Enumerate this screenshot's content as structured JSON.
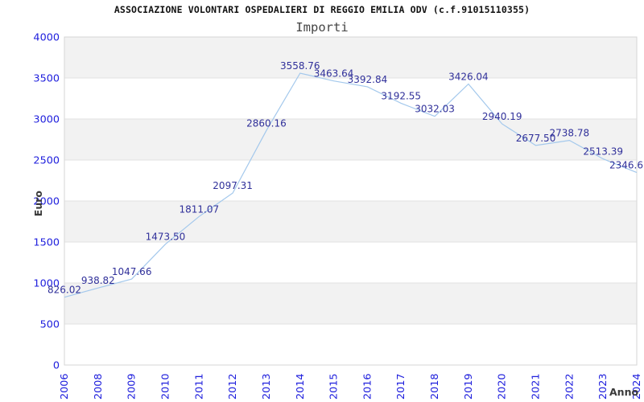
{
  "chart_data": {
    "type": "line",
    "title": "ASSOCIAZIONE VOLONTARI OSPEDALIERI DI REGGIO EMILIA ODV (c.f.91015110355)",
    "subtitle": "Importi",
    "xlabel": "Anno",
    "ylabel": "Euro",
    "categories": [
      "2006",
      "2008",
      "2009",
      "2010",
      "2011",
      "2012",
      "2013",
      "2014",
      "2015",
      "2016",
      "2017",
      "2018",
      "2019",
      "2020",
      "2021",
      "2022",
      "2023",
      "2024"
    ],
    "values": [
      826.02,
      938.82,
      1047.66,
      1473.5,
      1811.07,
      2097.31,
      2860.16,
      3558.76,
      3463.64,
      3392.84,
      3192.55,
      3032.03,
      3426.04,
      2940.19,
      2677.5,
      2738.78,
      2513.39,
      2346.6
    ],
    "point_labels": [
      "826.02",
      "938.82",
      "1047.66",
      "1473.50",
      "1811.07",
      "2097.31",
      "2860.16",
      "3558.76",
      "3463.64",
      "3392.84",
      "3192.55",
      "3032.03",
      "3426.04",
      "2940.19",
      "2677.50",
      "2738.78",
      "2513.39",
      "2346.6"
    ],
    "ylim": [
      0,
      4000
    ],
    "ytick_step": 500,
    "yticks": [
      0,
      500,
      1000,
      1500,
      2000,
      2500,
      3000,
      3500,
      4000
    ],
    "grid": "horizontal-bands-alternating",
    "legend": "none",
    "markers": "none",
    "colors": {
      "line": "#a3c8ec",
      "point_label": "#30309a",
      "tick_label": "#2020dd",
      "band": "#f2f2f2",
      "band_alt": "#ffffff",
      "gridline": "#e2e2e2",
      "border": "#d5d5d5",
      "title": "#111111",
      "subtitle": "#454545",
      "axis_label": "#3a3a3a"
    }
  }
}
